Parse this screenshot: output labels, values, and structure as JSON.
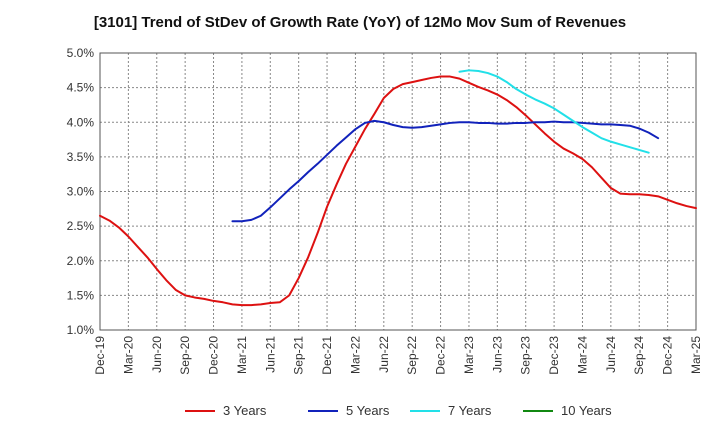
{
  "chart_data": {
    "type": "line",
    "title": "[3101]  Trend of StDev of Growth Rate (YoY) of 12Mo Mov Sum of Revenues",
    "xlabel": "",
    "ylabel": "",
    "ylim": [
      1.0,
      5.0
    ],
    "y_ticks": [
      "1.0%",
      "1.5%",
      "2.0%",
      "2.5%",
      "3.0%",
      "3.5%",
      "4.0%",
      "4.5%",
      "5.0%"
    ],
    "x_ticks": [
      "Dec-19",
      "Mar-20",
      "Jun-20",
      "Sep-20",
      "Dec-20",
      "Mar-21",
      "Jun-21",
      "Sep-21",
      "Dec-21",
      "Mar-22",
      "Jun-22",
      "Sep-22",
      "Dec-22",
      "Mar-23",
      "Jun-23",
      "Sep-23",
      "Dec-23",
      "Mar-24",
      "Jun-24",
      "Sep-24",
      "Dec-24",
      "Mar-25"
    ],
    "x_start": "Dec-19",
    "months_total": 63,
    "grid": true,
    "legend_position": "bottom",
    "series": [
      {
        "name": "3 Years",
        "color": "#dd1111",
        "start_offset": 0,
        "values": [
          2.65,
          2.58,
          2.48,
          2.35,
          2.2,
          2.05,
          1.88,
          1.72,
          1.58,
          1.5,
          1.47,
          1.45,
          1.42,
          1.4,
          1.37,
          1.36,
          1.36,
          1.37,
          1.39,
          1.4,
          1.5,
          1.75,
          2.05,
          2.4,
          2.78,
          3.1,
          3.4,
          3.65,
          3.9,
          4.12,
          4.35,
          4.48,
          4.55,
          4.58,
          4.61,
          4.64,
          4.66,
          4.66,
          4.63,
          4.57,
          4.51,
          4.46,
          4.4,
          4.32,
          4.22,
          4.1,
          3.97,
          3.84,
          3.72,
          3.62,
          3.55,
          3.47,
          3.35,
          3.2,
          3.05,
          2.97,
          2.96,
          2.96,
          2.95,
          2.93,
          2.88,
          2.83,
          2.79,
          2.76
        ]
      },
      {
        "name": "5 Years",
        "color": "#1122bb",
        "start_offset": 14,
        "values": [
          2.57,
          2.57,
          2.59,
          2.65,
          2.77,
          2.9,
          3.03,
          3.15,
          3.28,
          3.4,
          3.53,
          3.66,
          3.78,
          3.9,
          3.99,
          4.02,
          4.0,
          3.96,
          3.93,
          3.92,
          3.93,
          3.95,
          3.97,
          3.99,
          4.0,
          4.0,
          3.99,
          3.99,
          3.98,
          3.98,
          3.99,
          3.99,
          4.0,
          4.0,
          4.01,
          4.0,
          4.0,
          3.99,
          3.98,
          3.97,
          3.97,
          3.96,
          3.95,
          3.91,
          3.85,
          3.77
        ]
      },
      {
        "name": "7 Years",
        "color": "#22e0e8",
        "start_offset": 38,
        "values": [
          4.73,
          4.75,
          4.74,
          4.71,
          4.66,
          4.58,
          4.48,
          4.4,
          4.33,
          4.27,
          4.2,
          4.11,
          4.02,
          3.93,
          3.85,
          3.77,
          3.72,
          3.68,
          3.64,
          3.6,
          3.56
        ]
      },
      {
        "name": "10 Years",
        "color": "#118811",
        "start_offset": 63,
        "values": []
      }
    ]
  }
}
